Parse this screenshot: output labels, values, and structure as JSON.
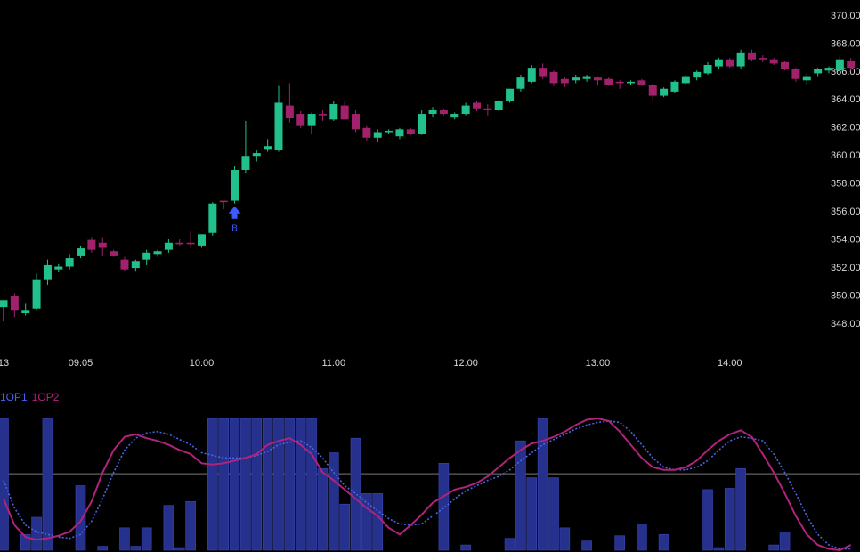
{
  "chart_data": [
    {
      "type": "candlestick",
      "categories": [
        "13",
        null,
        null,
        null,
        null,
        null,
        null,
        "09:05",
        null,
        null,
        null,
        null,
        null,
        null,
        null,
        null,
        null,
        null,
        "10:00",
        null,
        null,
        null,
        null,
        null,
        null,
        null,
        null,
        null,
        null,
        null,
        "11:00",
        null,
        null,
        null,
        null,
        null,
        null,
        null,
        null,
        null,
        null,
        null,
        "12:00",
        null,
        null,
        null,
        null,
        null,
        null,
        null,
        null,
        null,
        null,
        null,
        "13:00",
        null,
        null,
        null,
        null,
        null,
        null,
        null,
        null,
        null,
        null,
        null,
        "14:00",
        null,
        null,
        null,
        null,
        null,
        null,
        null,
        null,
        null,
        null,
        null
      ],
      "open": [
        349.2,
        350,
        348.8,
        349.1,
        351.2,
        351.9,
        352.1,
        352.9,
        354.0,
        353.8,
        353.2,
        352.6,
        352,
        352.6,
        353.0,
        353.3,
        353.8,
        353.8,
        353.6,
        354.5,
        356.8,
        356.8,
        359.0,
        360.0,
        360.5,
        360.4,
        363.6,
        363.0,
        362.2,
        363.0,
        362.6,
        363.6,
        363.0,
        362.0,
        361.3,
        361.7,
        361.4,
        361.9,
        361.6,
        363.0,
        363.3,
        362.8,
        363.0,
        363.8,
        363.4,
        363.3,
        363.9,
        364.8,
        365.3,
        366.3,
        366.0,
        365.5,
        365.4,
        365.5,
        365.6,
        365.5,
        365.3,
        365.2,
        365.4,
        365.1,
        364.3,
        364.6,
        365.2,
        365.6,
        365.9,
        366.4,
        366.9,
        366.4,
        367.4,
        367.0,
        366.9,
        366.7,
        366.2,
        365.4,
        365.9,
        366.1,
        366.1,
        366.8
      ],
      "high": [
        349.7,
        350.2,
        349.5,
        351.6,
        352.6,
        352.3,
        353,
        353.6,
        354.2,
        354.2,
        353.3,
        352.8,
        352.6,
        353.3,
        353.3,
        354.1,
        354.1,
        354.6,
        354.4,
        356.7,
        356.8,
        359.3,
        362.5,
        360.4,
        361.2,
        365,
        365.2,
        363.2,
        363.1,
        363.3,
        363.9,
        363.9,
        363.3,
        362.2,
        361.9,
        361.9,
        362.0,
        362.0,
        363.3,
        363.5,
        363.4,
        363.1,
        363.8,
        363.9,
        363.7,
        364.0,
        364.8,
        365.8,
        366.5,
        366.6,
        366.1,
        365.6,
        365.8,
        365.8,
        365.7,
        365.6,
        365.4,
        365.4,
        365.5,
        365.2,
        364.9,
        365.4,
        365.8,
        366.1,
        366.7,
        367.0,
        367.0,
        367.6,
        367.6,
        367.2,
        367.0,
        366.8,
        366.3,
        365.9,
        366.3,
        366.4,
        367.1,
        367.0
      ],
      "low": [
        348.2,
        348.5,
        348.6,
        349,
        350.8,
        351.7,
        351.9,
        352.7,
        353.1,
        352.9,
        352.8,
        351.8,
        351.8,
        352.2,
        352.8,
        353.1,
        353.6,
        353.5,
        353.5,
        354.3,
        356.2,
        356.6,
        358.8,
        359.6,
        360.3,
        360.3,
        362.4,
        362,
        361.6,
        362.5,
        362.5,
        362.6,
        361.7,
        361.1,
        361.0,
        361.6,
        361.2,
        361.5,
        361.5,
        362.8,
        362.9,
        362.6,
        362.9,
        363.2,
        362.9,
        363.2,
        363.8,
        364.6,
        365.2,
        365.5,
        365.0,
        364.9,
        365.2,
        365.3,
        365.1,
        365.0,
        364.8,
        365.1,
        365.0,
        364.0,
        364.2,
        364.5,
        365.0,
        365.4,
        365.8,
        366.2,
        366.3,
        366.2,
        366.8,
        366.7,
        366.5,
        366.1,
        365.3,
        365.1,
        365.7,
        365.9,
        365.7,
        366.1
      ],
      "close": [
        349.7,
        349.0,
        349.0,
        351.2,
        352.2,
        352.1,
        352.7,
        353.4,
        353.3,
        353.5,
        352.9,
        351.9,
        352.5,
        353.1,
        353.2,
        353.8,
        353.7,
        353.7,
        354.4,
        356.6,
        356.7,
        359.0,
        360.0,
        360.2,
        360.7,
        363.8,
        362.7,
        362.2,
        363.0,
        362.9,
        363.7,
        362.6,
        361.9,
        361.3,
        361.7,
        361.8,
        361.9,
        361.6,
        363.0,
        363.3,
        363.0,
        363.0,
        363.6,
        363.4,
        363.3,
        363.9,
        364.8,
        365.6,
        366.3,
        365.7,
        365.2,
        365.2,
        365.6,
        365.7,
        365.4,
        365.1,
        365.2,
        365.3,
        365.1,
        364.3,
        364.8,
        365.3,
        365.7,
        366.0,
        366.5,
        366.9,
        366.4,
        367.4,
        366.9,
        366.9,
        366.6,
        366.2,
        365.5,
        365.7,
        366.2,
        366.3,
        366.9,
        366.3
      ],
      "signals": [
        null,
        null,
        null,
        null,
        null,
        null,
        null,
        null,
        null,
        null,
        null,
        null,
        null,
        null,
        null,
        null,
        null,
        null,
        null,
        null,
        null,
        "B",
        null,
        null,
        null,
        null,
        null,
        null,
        null,
        null,
        null,
        null,
        null,
        null,
        null,
        null,
        null,
        null,
        null,
        null,
        null,
        null,
        null,
        null,
        null,
        null,
        null,
        null,
        null,
        null,
        null,
        null,
        null,
        null,
        null,
        null,
        null,
        null,
        null,
        null,
        null,
        null,
        null,
        null,
        null,
        null,
        null,
        null,
        null,
        null,
        null,
        null,
        null,
        null,
        null,
        null,
        null,
        null
      ],
      "up_color": "#22c08d",
      "down_color": "#a1226b",
      "signal_color": "#3d5afe",
      "ylim": [
        346.03,
        371.14
      ],
      "yticks": [
        {
          "value": 348,
          "label": "348.00"
        },
        {
          "value": 350,
          "label": "350.00"
        },
        {
          "value": 352,
          "label": "352.00"
        },
        {
          "value": 354,
          "label": "354.00"
        },
        {
          "value": 356,
          "label": "356.00"
        },
        {
          "value": 358,
          "label": "358.00"
        },
        {
          "value": 360,
          "label": "360.00"
        },
        {
          "value": 362,
          "label": "362.00"
        },
        {
          "value": 364,
          "label": "364.00"
        },
        {
          "value": 366,
          "label": "366.00"
        },
        {
          "value": 368,
          "label": "368.00"
        },
        {
          "value": 370,
          "label": "370.00"
        }
      ],
      "grid": false
    },
    {
      "type": "oscillator",
      "ylim": [
        0,
        100
      ],
      "level": 58,
      "series": [
        {
          "type": "bar",
          "color": "#26318e",
          "values": [
            100,
            0,
            12,
            25,
            100,
            0,
            0,
            49,
            0,
            3,
            0,
            17,
            3,
            17,
            0,
            34,
            2,
            37,
            0,
            100,
            100,
            100,
            100,
            100,
            100,
            100,
            100,
            100,
            100,
            62,
            74,
            35,
            85,
            43,
            43,
            0,
            0,
            0,
            0,
            0,
            66,
            0,
            4,
            0,
            0,
            0,
            9,
            83,
            55,
            100,
            55,
            17,
            0,
            7,
            0,
            0,
            11,
            0,
            20,
            0,
            12,
            0,
            0,
            0,
            46,
            2,
            47,
            62,
            0,
            0,
            4,
            14,
            0,
            0,
            0,
            0,
            0,
            0
          ]
        },
        {
          "type": "line",
          "name": "1OP1",
          "color": "#4a63e8",
          "dashed": true,
          "values": [
            53,
            32,
            19,
            14,
            12,
            10,
            9,
            12,
            22,
            39,
            59,
            76,
            85,
            89,
            90,
            88,
            84,
            80,
            74,
            72,
            70,
            70,
            70,
            72,
            75,
            80,
            82,
            83,
            78,
            70,
            59,
            49,
            43,
            36,
            30,
            24,
            20,
            19,
            20,
            26,
            32,
            39,
            45,
            49,
            53,
            56,
            61,
            68,
            74,
            80,
            84,
            88,
            92,
            95,
            97,
            98,
            97,
            90,
            80,
            70,
            63,
            61,
            61,
            63,
            68,
            76,
            83,
            86,
            85,
            83,
            73,
            59,
            43,
            26,
            12,
            4,
            1,
            1
          ]
        },
        {
          "type": "line",
          "name": "1OP2",
          "color": "#b0237a",
          "dashed": false,
          "values": [
            39,
            19,
            10,
            8,
            9,
            11,
            14,
            22,
            37,
            59,
            76,
            86,
            88,
            85,
            83,
            80,
            76,
            73,
            66,
            65,
            66,
            68,
            70,
            73,
            80,
            83,
            85,
            80,
            73,
            59,
            53,
            46,
            39,
            32,
            26,
            17,
            12,
            19,
            27,
            36,
            41,
            46,
            48,
            51,
            56,
            63,
            70,
            76,
            81,
            83,
            86,
            90,
            95,
            99,
            100,
            98,
            90,
            80,
            70,
            63,
            61,
            61,
            63,
            68,
            76,
            83,
            88,
            91,
            86,
            73,
            59,
            43,
            26,
            12,
            4,
            1,
            0,
            4
          ]
        }
      ]
    }
  ]
}
